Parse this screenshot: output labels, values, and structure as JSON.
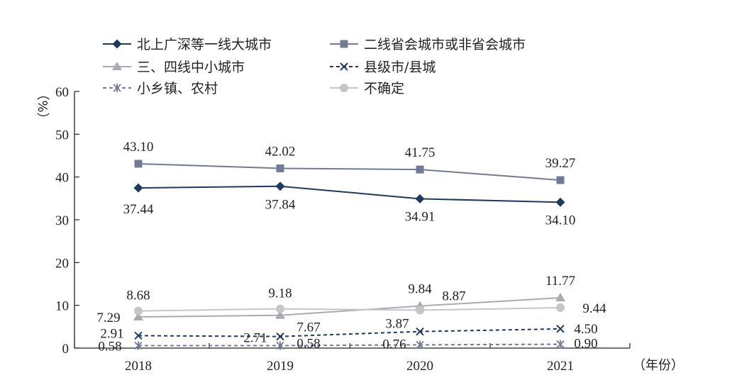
{
  "chart_data": {
    "type": "line",
    "categories": [
      "2018",
      "2019",
      "2020",
      "2021"
    ],
    "ylim": [
      0,
      60
    ],
    "yticks": [
      "0",
      "10",
      "20",
      "30",
      "40",
      "50",
      "60"
    ],
    "ylabel": "（%）",
    "xlabel": "（年份）",
    "legend_placement": "top-left",
    "series": [
      {
        "name": "北上广深等一线大城市",
        "marker": "diamond",
        "dash": "solid",
        "color": "#1f3a5f",
        "values": [
          37.44,
          37.84,
          34.91,
          34.1
        ],
        "labels": [
          "37.44",
          "37.84",
          "34.91",
          "34.10"
        ]
      },
      {
        "name": "二线省会城市或非省会城市",
        "marker": "square",
        "dash": "solid",
        "color": "#737a94",
        "values": [
          43.1,
          42.02,
          41.75,
          39.27
        ],
        "labels": [
          "43.10",
          "42.02",
          "41.75",
          "39.27"
        ]
      },
      {
        "name": "三、四线中小城市",
        "marker": "triangle",
        "dash": "solid",
        "color": "#a9acb2",
        "values": [
          7.29,
          7.67,
          9.84,
          11.77
        ],
        "labels": [
          "7.29",
          "7.67",
          "9.84",
          "11.77"
        ]
      },
      {
        "name": "县级市/县城",
        "marker": "x",
        "dash": "dashed",
        "color": "#1f3a5f",
        "values": [
          2.91,
          2.71,
          3.87,
          4.5
        ],
        "labels": [
          "2.91",
          "2.71",
          "3.87",
          "4.50"
        ]
      },
      {
        "name": "小乡镇、农村",
        "marker": "star",
        "dash": "dashed",
        "color": "#737a94",
        "values": [
          0.58,
          0.58,
          0.76,
          0.9
        ],
        "labels": [
          "0.58",
          "0.58",
          "0.76",
          "0.90"
        ]
      },
      {
        "name": "不确定",
        "marker": "circle",
        "dash": "solid",
        "color": "#c4c6ca",
        "values": [
          8.68,
          9.18,
          8.87,
          9.44
        ],
        "labels": [
          "8.68",
          "9.18",
          "8.87",
          "9.44"
        ]
      }
    ]
  }
}
